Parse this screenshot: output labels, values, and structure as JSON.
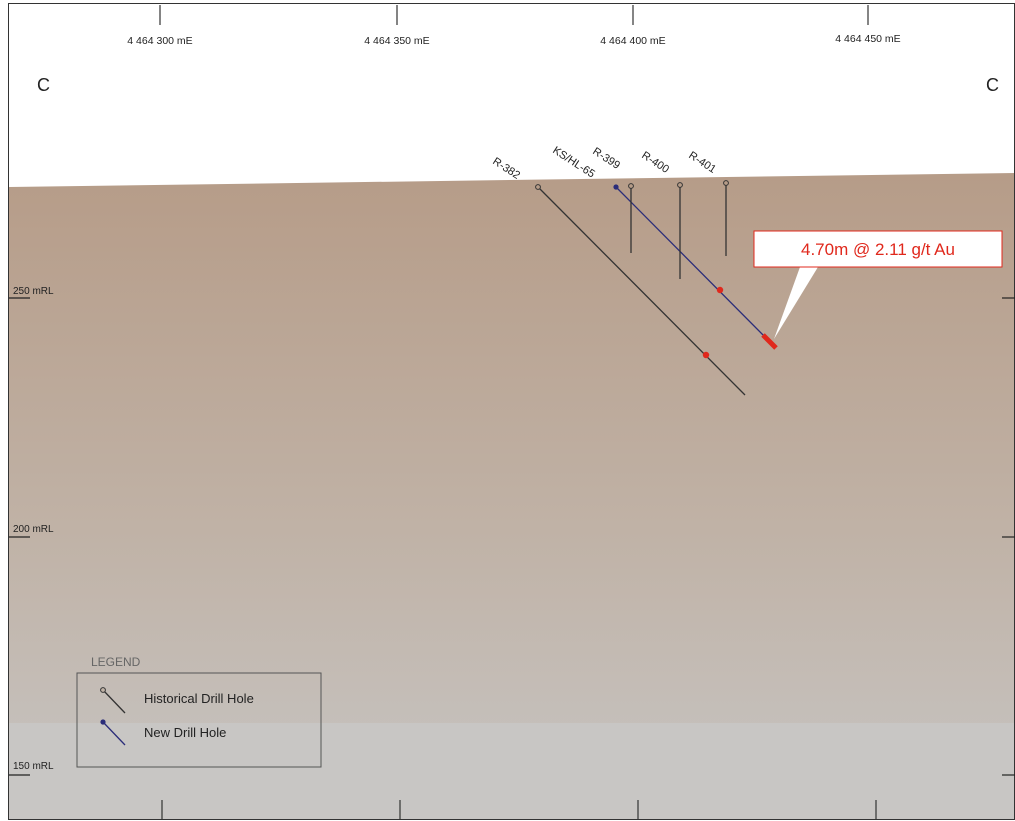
{
  "easting_labels": [
    "4 464 300 mE",
    "4 464 350 mE",
    "4 464 400 mE",
    "4 464 450 mE"
  ],
  "elevation_labels": [
    "250 mRL",
    "200 mRL",
    "150 mRL"
  ],
  "section_labels": {
    "left": "C",
    "right": "C"
  },
  "drill_holes": [
    {
      "name": "R-382",
      "type": "historical"
    },
    {
      "name": "KS/HL-65",
      "type": "new"
    },
    {
      "name": "R-399",
      "type": "historical"
    },
    {
      "name": "R-400",
      "type": "historical"
    },
    {
      "name": "R-401",
      "type": "historical"
    }
  ],
  "intercept_callout": "4.70m @ 2.11 g/t Au",
  "legend": {
    "title": "LEGEND",
    "historical_label": "Historical Drill Hole",
    "new_label": "New Drill Hole"
  },
  "colors": {
    "ground_top": "#b69c88",
    "ground_bottom": "#c6c4c2",
    "historical_hole": "#333333",
    "new_hole": "#2b2d7a",
    "intercept": "#e0281c",
    "callout_text": "#e0281c"
  }
}
